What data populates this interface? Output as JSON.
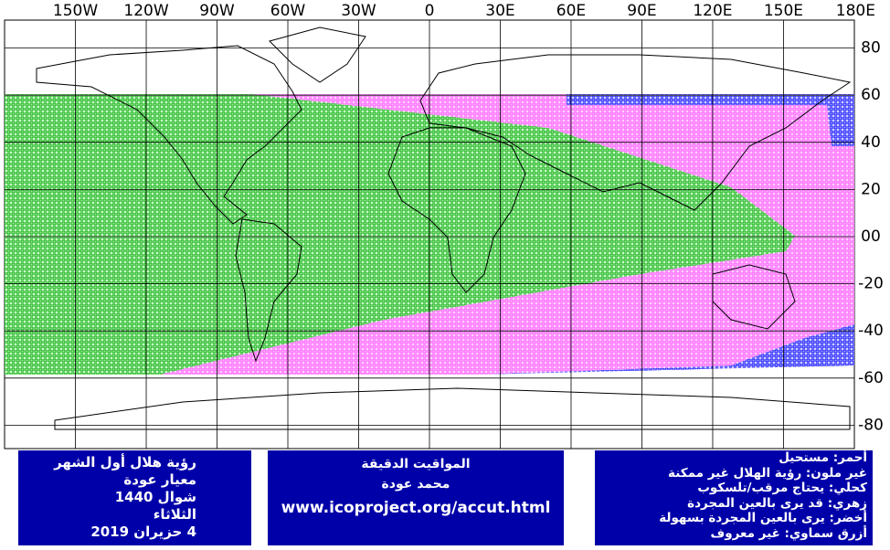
{
  "map": {
    "lon_labels": [
      "150W",
      "120W",
      "90W",
      "60W",
      "30W",
      "0",
      "30E",
      "60E",
      "90E",
      "120E",
      "150E",
      "180E"
    ],
    "lat_labels": [
      "80",
      "60",
      "40",
      "20",
      "00",
      "-20",
      "-40",
      "-60",
      "-80"
    ]
  },
  "left_box": [
    "رؤية هلال أول الشهر",
    "معيار عودة",
    "شوال 1440",
    "الثلاثاء",
    "4 حزيران 2019"
  ],
  "middle_box": [
    "المواقيت الدقيقة",
    "محمد عودة",
    "www.icoproject.org/accut.html"
  ],
  "legend": [
    "أحمر: مستحيل",
    "غير ملون: رؤية الهلال غير ممكنة",
    "كحلي: يحتاج مرقب/تلسكوب",
    "زهري: قد يرى بالعين المجردة",
    "أخضر: يرى بالعين المجردة بسهولة",
    "أزرق سماوي: غير معروف"
  ]
}
